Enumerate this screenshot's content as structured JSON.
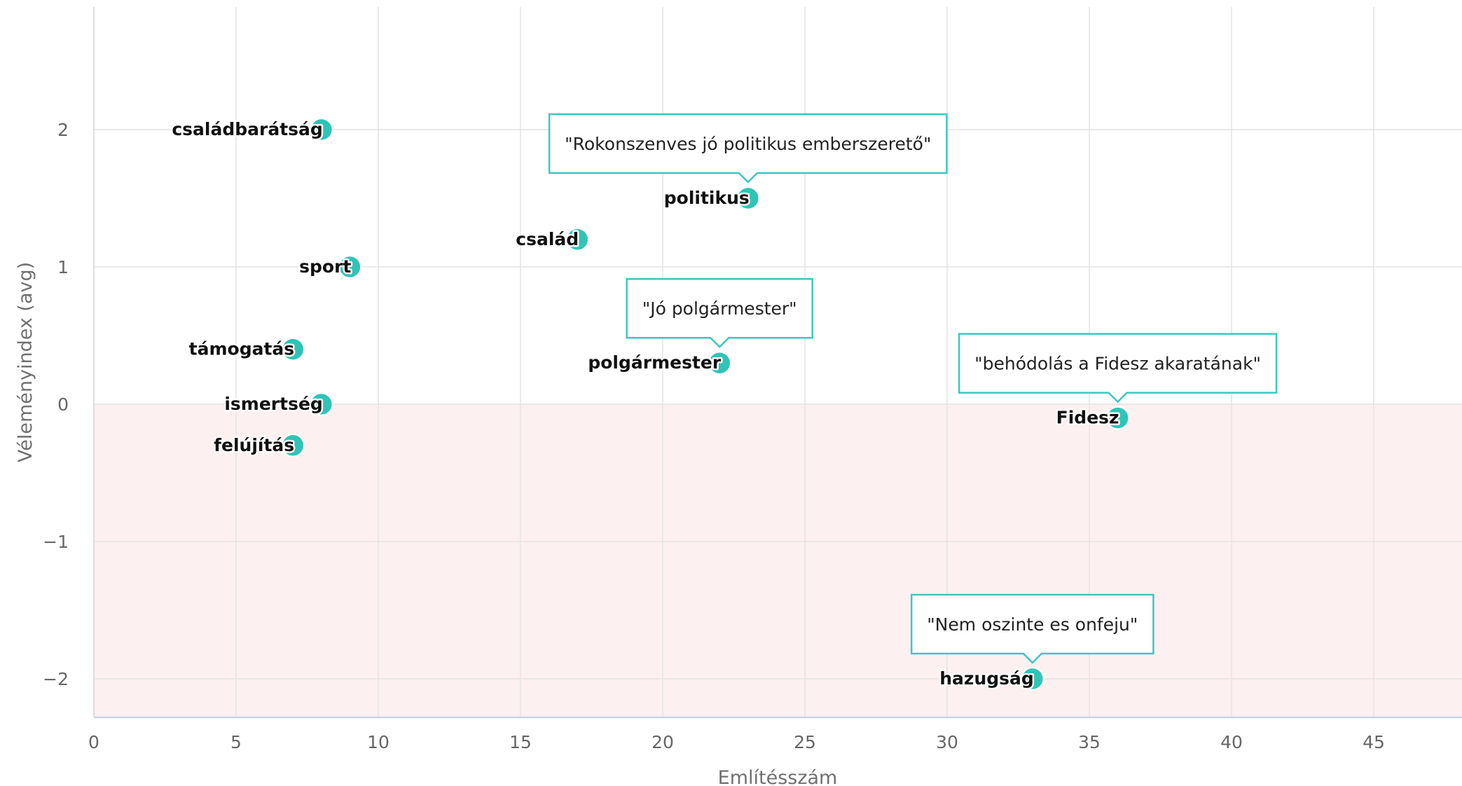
{
  "chart_data": {
    "type": "scatter",
    "xlabel": "Említésszám",
    "ylabel": "Véleményindex (avg)",
    "xlim": [
      0,
      48
    ],
    "ylim": [
      -2.3,
      2.9
    ],
    "xticks": [
      0,
      5,
      10,
      15,
      20,
      25,
      30,
      35,
      40,
      45
    ],
    "yticks": [
      -2,
      -1,
      0,
      1,
      2
    ],
    "grid": true,
    "negative_region_color": "#fdf0f0",
    "marker_color": "#2ec4b6",
    "callout_border_color": "#3cc7c0",
    "points": [
      {
        "label": "családbarátság",
        "x": 8,
        "y": 2.0
      },
      {
        "label": "politikus",
        "x": 23,
        "y": 1.5,
        "callout": "\"Rokonszenves jó politikus emberszerető\""
      },
      {
        "label": "család",
        "x": 17,
        "y": 1.2
      },
      {
        "label": "sport",
        "x": 9,
        "y": 1.0
      },
      {
        "label": "polgármester",
        "x": 22,
        "y": 0.3,
        "callout": "\"Jó polgármester\""
      },
      {
        "label": "támogatás",
        "x": 7,
        "y": 0.4
      },
      {
        "label": "ismertség",
        "x": 8,
        "y": 0.0
      },
      {
        "label": "Fidesz",
        "x": 36,
        "y": -0.1,
        "callout": "\"behódolás a Fidesz akaratának\""
      },
      {
        "label": "felújítás",
        "x": 7,
        "y": -0.3
      },
      {
        "label": "hazugság",
        "x": 33,
        "y": -2.0,
        "callout": "\"Nem oszinte es onfeju\""
      }
    ]
  }
}
